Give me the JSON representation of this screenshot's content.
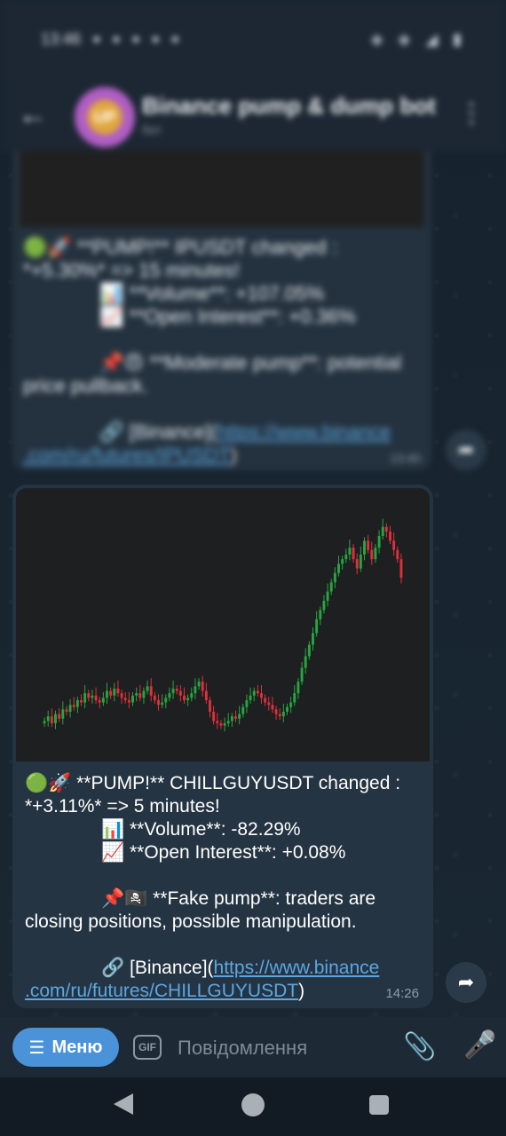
{
  "status_bar": {
    "time": "13:46",
    "dots": "● ● ● ● ●",
    "right_icons": "◈ ◈ ◢ ▮"
  },
  "header": {
    "title": "Binance pump & dump bot",
    "subtitle": "бот",
    "avatar_text": "UP"
  },
  "old_message": {
    "l1": "🟢🚀 **PUMP!** IPUSDT changed :",
    "l2": "*+5.30%* => 15 minutes!",
    "l3": "📊 **Volume**: +107.05%",
    "l4": "📈 **Open Interest**: +0.36%",
    "l5": "📌😠 **Moderate pump**: potential",
    "l6": "price pullback.",
    "link_prefix": "🔗 [Binance](",
    "link1": "https://www.binance",
    "link2": ".com/ru/futures/IPUSDT",
    "link_suffix": ")",
    "time": "13:40"
  },
  "message": {
    "l1": "🟢🚀 **PUMP!** CHILLGUYUSDT changed :",
    "l2": "*+3.11%* => 5 minutes!",
    "l3": "📊 **Volume**: -82.29%",
    "l4": "📈 **Open Interest**: +0.08%",
    "l5": "📌🏴‍☠️ **Fake pump**: traders are",
    "l6": "closing positions, possible manipulation.",
    "link_prefix": "🔗 [Binance](",
    "link1": "https://www.binance",
    "link2": ".com/ru/futures/CHILLGUYUSDT",
    "link_suffix": ")",
    "time": "14:26"
  },
  "chart_data": {
    "type": "candlestick",
    "up_color": "#26a641",
    "down_color": "#e0303a",
    "close": [
      10,
      12,
      9,
      13,
      11,
      15,
      14,
      17,
      16,
      19,
      18,
      22,
      20,
      21,
      19,
      18,
      20,
      23,
      21,
      24,
      22,
      20,
      19,
      18,
      21,
      22,
      20,
      23,
      25,
      21,
      19,
      17,
      18,
      20,
      22,
      24,
      23,
      21,
      19,
      20,
      22,
      25,
      27,
      23,
      19,
      14,
      10,
      9,
      8,
      9,
      10,
      12,
      11,
      13,
      16,
      19,
      21,
      23,
      22,
      20,
      18,
      17,
      15,
      13,
      12,
      14,
      16,
      18,
      22,
      27,
      33,
      38,
      43,
      48,
      54,
      58,
      62,
      66,
      70,
      74,
      78,
      80,
      82,
      85,
      80,
      76,
      82,
      88,
      84,
      80,
      85,
      90,
      94,
      92,
      88,
      84,
      80,
      72
    ]
  },
  "composer": {
    "menu_label": "Меню",
    "gif_label": "GIF",
    "placeholder": "Повідомлення"
  },
  "colors": {
    "accent": "#4a93d8",
    "bubble": "#253443",
    "link": "#5aa7e3"
  }
}
